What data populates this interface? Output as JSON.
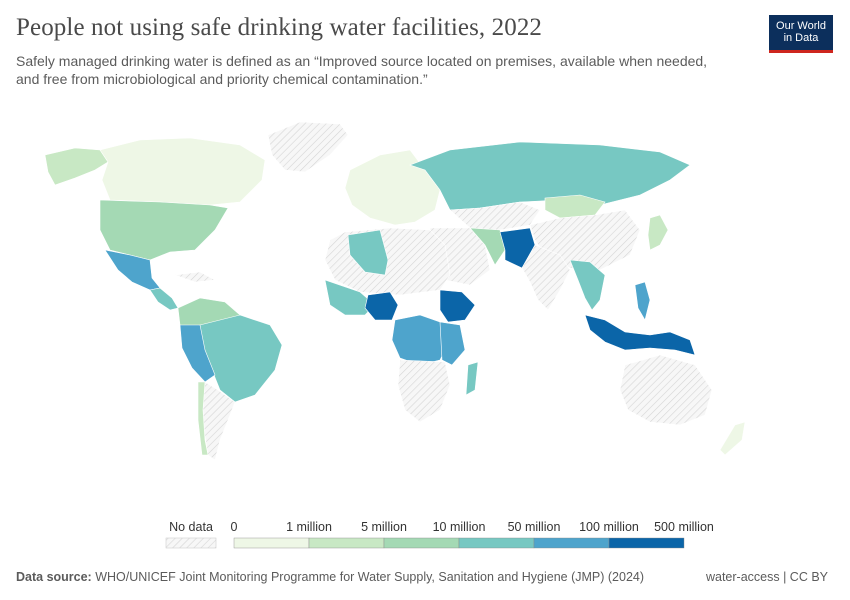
{
  "title": "People not using safe drinking water facilities, 2022",
  "subtitle": "Safely managed drinking water is defined as an “Improved source located on premises, available when needed, and free from microbiological and priority chemical contamination.”",
  "logo": {
    "line1": "Our World",
    "line2": "in Data"
  },
  "legend": {
    "no_data_label": "No data",
    "ticks": [
      "0",
      "1 million",
      "5 million",
      "10 million",
      "50 million",
      "100 million",
      "500 million"
    ],
    "colors": [
      "#eef7e6",
      "#c8e8c4",
      "#a4d9b4",
      "#77c8c2",
      "#4ea4cc",
      "#0b65a8"
    ]
  },
  "footer": {
    "source_label": "Data source:",
    "source_text": "WHO/UNICEF Joint Monitoring Programme for Water Supply, Sanitation and Hygiene (JMP) (2024)",
    "right": "water-access | CC BY"
  }
}
